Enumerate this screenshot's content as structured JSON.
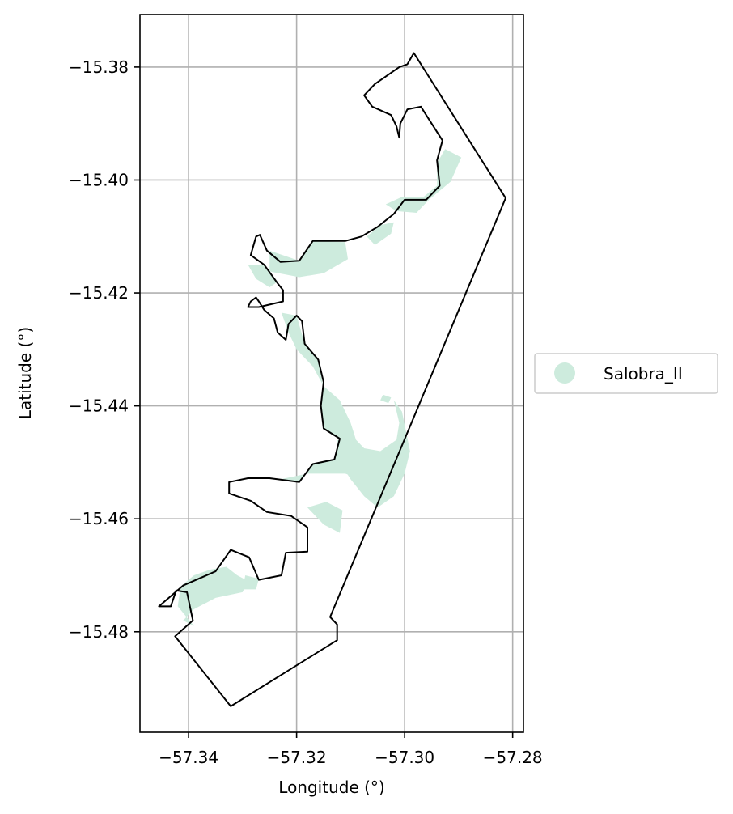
{
  "chart_data": {
    "type": "map",
    "xlabel": "Longitude (°)",
    "ylabel": "Latitude (°)",
    "xlim": [
      -57.349,
      -57.278
    ],
    "ylim": [
      -15.4978,
      -15.3707
    ],
    "grid": true,
    "x_ticks": [
      {
        "value": -57.34,
        "label": "−57.34"
      },
      {
        "value": -57.32,
        "label": "−57.32"
      },
      {
        "value": -57.3,
        "label": "−57.30"
      },
      {
        "value": -57.28,
        "label": "−57.28"
      }
    ],
    "y_ticks": [
      {
        "value": -15.38,
        "label": "−15.38"
      },
      {
        "value": -15.4,
        "label": "−15.40"
      },
      {
        "value": -15.42,
        "label": "−15.42"
      },
      {
        "value": -15.44,
        "label": "−15.44"
      },
      {
        "value": -15.46,
        "label": "−15.46"
      },
      {
        "value": -15.48,
        "label": "−15.48"
      }
    ],
    "legend": {
      "placement": "center-right outside",
      "entries": [
        {
          "label": "Salobra_II",
          "color": "#cdebdd"
        }
      ]
    },
    "boundary": {
      "color": "#000000",
      "points": [
        [
          -57.2983,
          -15.3775
        ],
        [
          -57.2813,
          -15.4032
        ],
        [
          -57.3138,
          -15.4774
        ],
        [
          -57.3125,
          -15.4787
        ],
        [
          -57.3125,
          -15.4815
        ],
        [
          -57.3322,
          -15.4932
        ],
        [
          -57.3425,
          -15.4808
        ],
        [
          -57.3392,
          -15.478
        ],
        [
          -57.3403,
          -15.473
        ],
        [
          -57.3423,
          -15.4727
        ],
        [
          -57.3433,
          -15.4755
        ],
        [
          -57.3455,
          -15.4755
        ],
        [
          -57.341,
          -15.4718
        ],
        [
          -57.335,
          -15.4693
        ],
        [
          -57.3322,
          -15.4655
        ],
        [
          -57.3288,
          -15.4668
        ],
        [
          -57.327,
          -15.4708
        ],
        [
          -57.3228,
          -15.47
        ],
        [
          -57.322,
          -15.466
        ],
        [
          -57.318,
          -15.4658
        ],
        [
          -57.318,
          -15.4615
        ],
        [
          -57.321,
          -15.4595
        ],
        [
          -57.3255,
          -15.4588
        ],
        [
          -57.3285,
          -15.4568
        ],
        [
          -57.3325,
          -15.4555
        ],
        [
          -57.3325,
          -15.4535
        ],
        [
          -57.329,
          -15.4528
        ],
        [
          -57.325,
          -15.4528
        ],
        [
          -57.3195,
          -15.4535
        ],
        [
          -57.317,
          -15.4503
        ],
        [
          -57.313,
          -15.4495
        ],
        [
          -57.312,
          -15.4458
        ],
        [
          -57.315,
          -15.444
        ],
        [
          -57.3155,
          -15.44
        ],
        [
          -57.315,
          -15.4358
        ],
        [
          -57.316,
          -15.4318
        ],
        [
          -57.3185,
          -15.429
        ],
        [
          -57.319,
          -15.425
        ],
        [
          -57.32,
          -15.424
        ],
        [
          -57.3215,
          -15.4255
        ],
        [
          -57.322,
          -15.4283
        ],
        [
          -57.3235,
          -15.427
        ],
        [
          -57.3242,
          -15.4245
        ],
        [
          -57.326,
          -15.423
        ],
        [
          -57.327,
          -15.4215
        ],
        [
          -57.3275,
          -15.4208
        ],
        [
          -57.3285,
          -15.4215
        ],
        [
          -57.329,
          -15.4225
        ],
        [
          -57.327,
          -15.4225
        ],
        [
          -57.3225,
          -15.4215
        ],
        [
          -57.3225,
          -15.4195
        ],
        [
          -57.3235,
          -15.4183
        ],
        [
          -57.326,
          -15.415
        ],
        [
          -57.3285,
          -15.4133
        ],
        [
          -57.3275,
          -15.41
        ],
        [
          -57.3268,
          -15.4097
        ],
        [
          -57.3255,
          -15.4125
        ],
        [
          -57.323,
          -15.4145
        ],
        [
          -57.3195,
          -15.4143
        ],
        [
          -57.317,
          -15.4108
        ],
        [
          -57.3145,
          -15.4108
        ],
        [
          -57.311,
          -15.4108
        ],
        [
          -57.308,
          -15.41
        ],
        [
          -57.305,
          -15.4083
        ],
        [
          -57.302,
          -15.406
        ],
        [
          -57.3,
          -15.4035
        ],
        [
          -57.296,
          -15.4035
        ],
        [
          -57.2935,
          -15.401
        ],
        [
          -57.294,
          -15.3965
        ],
        [
          -57.293,
          -15.393
        ],
        [
          -57.295,
          -15.39
        ],
        [
          -57.297,
          -15.387
        ],
        [
          -57.2995,
          -15.3875
        ],
        [
          -57.3008,
          -15.39
        ],
        [
          -57.301,
          -15.3925
        ],
        [
          -57.3015,
          -15.3905
        ],
        [
          -57.3025,
          -15.3885
        ],
        [
          -57.306,
          -15.387
        ],
        [
          -57.3075,
          -15.385
        ],
        [
          -57.3055,
          -15.383
        ],
        [
          -57.304,
          -15.382
        ],
        [
          -57.301,
          -15.38
        ],
        [
          -57.2995,
          -15.3795
        ],
        [
          -57.2983,
          -15.3775
        ]
      ]
    },
    "series": [
      {
        "name": "Salobra_II",
        "color": "#cdebdd",
        "patches": [
          [
            [
              -57.2925,
              -15.3945
            ],
            [
              -57.2895,
              -15.396
            ],
            [
              -57.2915,
              -15.4003
            ],
            [
              -57.2955,
              -15.4035
            ],
            [
              -57.2978,
              -15.4058
            ],
            [
              -57.3015,
              -15.4055
            ],
            [
              -57.3035,
              -15.4043
            ],
            [
              -57.3005,
              -15.403
            ],
            [
              -57.2965,
              -15.403
            ],
            [
              -57.294,
              -15.401
            ],
            [
              -57.294,
              -15.397
            ]
          ],
          [
            [
              -57.307,
              -15.41
            ],
            [
              -57.3045,
              -15.408
            ],
            [
              -57.302,
              -15.4075
            ],
            [
              -57.3025,
              -15.4095
            ],
            [
              -57.3055,
              -15.4115
            ]
          ],
          [
            [
              -57.325,
              -15.4125
            ],
            [
              -57.3195,
              -15.4143
            ],
            [
              -57.317,
              -15.4108
            ],
            [
              -57.311,
              -15.411
            ],
            [
              -57.3105,
              -15.414
            ],
            [
              -57.315,
              -15.4165
            ],
            [
              -57.3195,
              -15.4172
            ],
            [
              -57.325,
              -15.4162
            ]
          ],
          [
            [
              -57.329,
              -15.415
            ],
            [
              -57.3275,
              -15.4175
            ],
            [
              -57.325,
              -15.419
            ],
            [
              -57.3235,
              -15.418
            ],
            [
              -57.326,
              -15.415
            ]
          ],
          [
            [
              -57.3228,
              -15.4235
            ],
            [
              -57.32,
              -15.424
            ],
            [
              -57.3185,
              -15.429
            ],
            [
              -57.316,
              -15.432
            ],
            [
              -57.3152,
              -15.436
            ],
            [
              -57.3155,
              -15.44
            ],
            [
              -57.315,
              -15.444
            ],
            [
              -57.312,
              -15.4458
            ],
            [
              -57.313,
              -15.4495
            ],
            [
              -57.317,
              -15.4503
            ],
            [
              -57.3195,
              -15.4535
            ],
            [
              -57.323,
              -15.453
            ],
            [
              -57.318,
              -15.452
            ],
            [
              -57.311,
              -15.452
            ],
            [
              -57.308,
              -15.453
            ],
            [
              -57.3065,
              -15.456
            ],
            [
              -57.3055,
              -15.453
            ],
            [
              -57.306,
              -15.449
            ],
            [
              -57.309,
              -15.446
            ],
            [
              -57.31,
              -15.443
            ],
            [
              -57.312,
              -15.439
            ],
            [
              -57.315,
              -15.4365
            ],
            [
              -57.317,
              -15.433
            ],
            [
              -57.32,
              -15.43
            ],
            [
              -57.3215,
              -15.427
            ]
          ],
          [
            [
              -57.3125,
              -15.446
            ],
            [
              -57.31,
              -15.447
            ],
            [
              -57.3075,
              -15.4475
            ],
            [
              -57.3045,
              -15.448
            ],
            [
              -57.3015,
              -15.446
            ],
            [
              -57.301,
              -15.443
            ],
            [
              -57.302,
              -15.439
            ],
            [
              -57.3005,
              -15.441
            ],
            [
              -57.299,
              -15.448
            ],
            [
              -57.3,
              -15.452
            ],
            [
              -57.302,
              -15.456
            ],
            [
              -57.305,
              -15.458
            ],
            [
              -57.3075,
              -15.456
            ],
            [
              -57.31,
              -15.453
            ],
            [
              -57.312,
              -15.45
            ]
          ],
          [
            [
              -57.318,
              -15.458
            ],
            [
              -57.315,
              -15.461
            ],
            [
              -57.312,
              -15.4625
            ],
            [
              -57.3115,
              -15.4585
            ],
            [
              -57.3145,
              -15.457
            ]
          ],
          [
            [
              -57.3415,
              -15.472
            ],
            [
              -57.339,
              -15.47
            ],
            [
              -57.336,
              -15.469
            ],
            [
              -57.333,
              -15.4685
            ],
            [
              -57.331,
              -15.47
            ],
            [
              -57.329,
              -15.471
            ],
            [
              -57.33,
              -15.473
            ],
            [
              -57.335,
              -15.474
            ],
            [
              -57.339,
              -15.476
            ],
            [
              -57.341,
              -15.478
            ],
            [
              -57.339,
              -15.479
            ],
            [
              -57.342,
              -15.4755
            ]
          ],
          [
            [
              -57.327,
              -15.4706
            ],
            [
              -57.3295,
              -15.47
            ],
            [
              -57.33,
              -15.4725
            ],
            [
              -57.3275,
              -15.4725
            ]
          ],
          [
            [
              -57.304,
              -15.438
            ],
            [
              -57.3025,
              -15.4385
            ],
            [
              -57.303,
              -15.4395
            ],
            [
              -57.3045,
              -15.439
            ]
          ]
        ]
      }
    ]
  }
}
